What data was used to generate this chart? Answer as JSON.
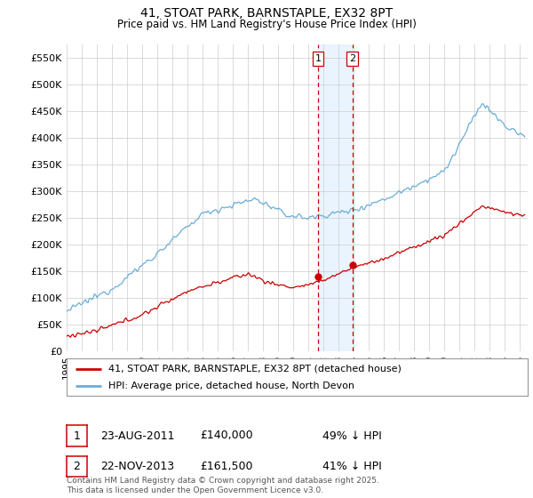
{
  "title1": "41, STOAT PARK, BARNSTAPLE, EX32 8PT",
  "title2": "Price paid vs. HM Land Registry's House Price Index (HPI)",
  "ylabel_ticks": [
    0,
    50000,
    100000,
    150000,
    200000,
    250000,
    300000,
    350000,
    400000,
    450000,
    500000,
    550000
  ],
  "ylabel_labels": [
    "£0",
    "£50K",
    "£100K",
    "£150K",
    "£200K",
    "£250K",
    "£300K",
    "£350K",
    "£400K",
    "£450K",
    "£500K",
    "£550K"
  ],
  "ylim": [
    0,
    575000
  ],
  "xlim_start": 1995.0,
  "xlim_end": 2025.5,
  "hpi_color": "#6baed6",
  "price_color": "#cc0000",
  "vline_color": "#cc0000",
  "sale1_date": "23-AUG-2011",
  "sale1_price": 140000,
  "sale1_label": "£140,000",
  "sale1_hpi_pct": "49% ↓ HPI",
  "sale1_year": 2011.64,
  "sale2_date": "22-NOV-2013",
  "sale2_price": 161500,
  "sale2_label": "£161,500",
  "sale2_hpi_pct": "41% ↓ HPI",
  "sale2_year": 2013.9,
  "legend_line1": "41, STOAT PARK, BARNSTAPLE, EX32 8PT (detached house)",
  "legend_line2": "HPI: Average price, detached house, North Devon",
  "copyright": "Contains HM Land Registry data © Crown copyright and database right 2025.\nThis data is licensed under the Open Government Licence v3.0.",
  "background_color": "#ffffff",
  "plot_bg_color": "#ffffff",
  "grid_color": "#cccccc",
  "span_color": "#ddeeff",
  "span_alpha": 0.6
}
